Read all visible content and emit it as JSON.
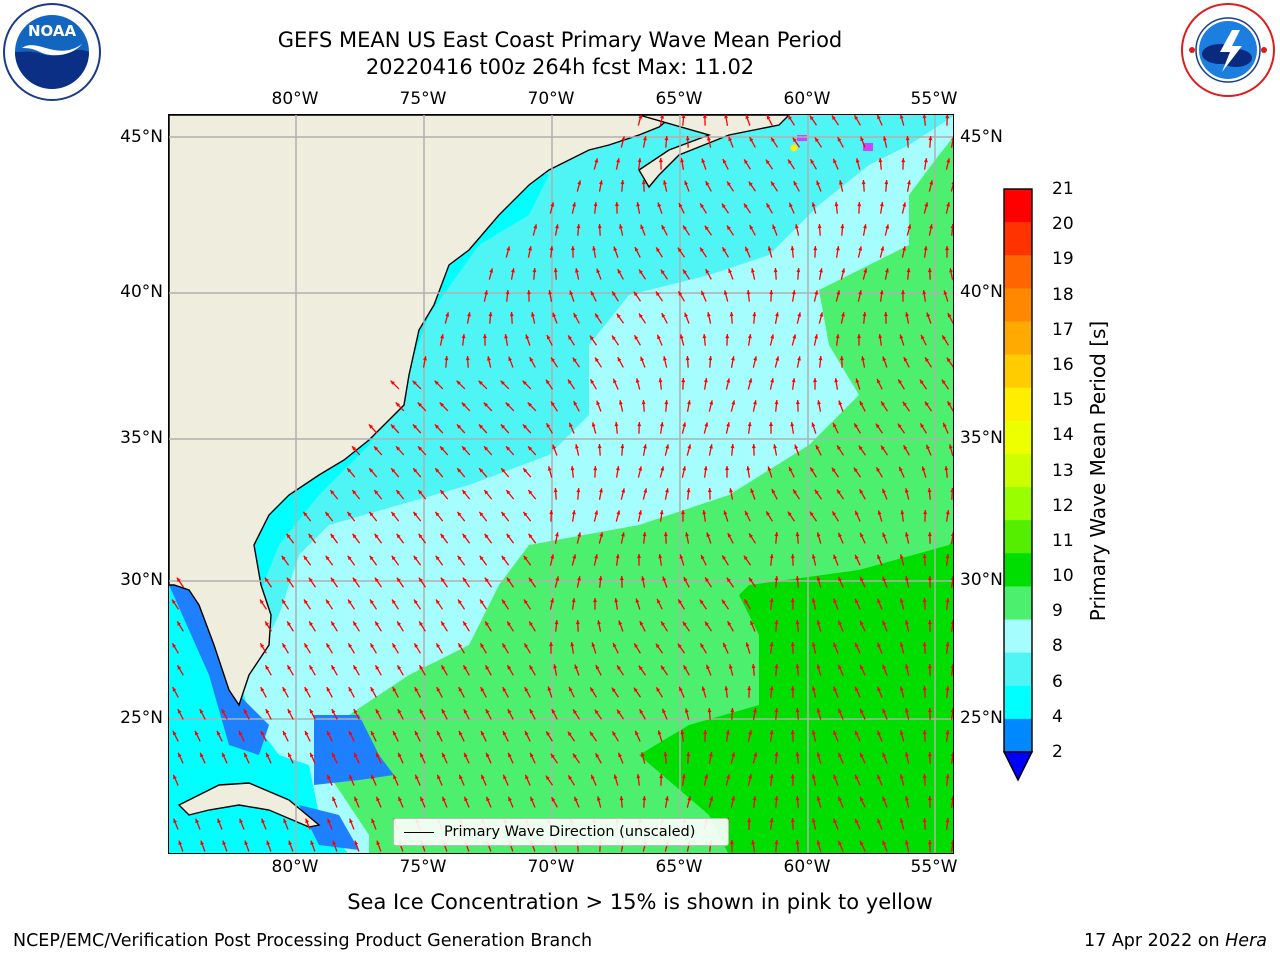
{
  "header": {
    "title_line1": "GEFS MEAN US East Coast Primary Wave Mean Period",
    "title_line2": "20220416 t00z 264h fcst   Max: 11.02"
  },
  "logos": {
    "left": {
      "name": "noaa-logo",
      "text": "NOAA",
      "ring_text": "NATIONAL OCEANIC AND ATMOSPHERIC ADMINISTRATION · U.S. DEPARTMENT OF COMMERCE"
    },
    "right": {
      "name": "nws-logo",
      "ring_text": "NATIONAL WEATHER SERVICE"
    }
  },
  "map": {
    "lon_labels": [
      "80°W",
      "75°W",
      "70°W",
      "65°W",
      "60°W",
      "55°W"
    ],
    "lat_labels": [
      "45°N",
      "40°N",
      "35°N",
      "30°N",
      "25°N"
    ],
    "extent": {
      "lon": [
        -85,
        -54.2
      ],
      "lat": [
        20.5,
        45.9
      ]
    },
    "gridlines": true,
    "land_color": "#efedde",
    "arrow_color": "#ff0000",
    "legend": {
      "label": "Primary Wave Direction (unscaled)",
      "position": "lower center"
    }
  },
  "colorbar": {
    "label": "Primary Wave Mean Period [s]",
    "ticks": [
      "21",
      "20",
      "19",
      "18",
      "17",
      "16",
      "15",
      "14",
      "13",
      "12",
      "11",
      "10",
      "9",
      "8",
      "6",
      "4",
      "2"
    ],
    "colors": [
      "#ff0000",
      "#ff3300",
      "#ff6600",
      "#ff8800",
      "#ffaa00",
      "#ffcc00",
      "#ffee00",
      "#eeff00",
      "#ccff00",
      "#99ff00",
      "#55ee00",
      "#00dd00",
      "#4df06e",
      "#a5fdfd",
      "#4ff5f5",
      "#00ffff",
      "#0088ff",
      "#0000ff"
    ],
    "extend": "min"
  },
  "footer": {
    "note": "Sea Ice Concentration > 15% is shown in pink to yellow",
    "left": "NCEP/EMC/Verification Post Processing Product Generation Branch",
    "date": "17 Apr 2022 on ",
    "machine": "Hera"
  }
}
